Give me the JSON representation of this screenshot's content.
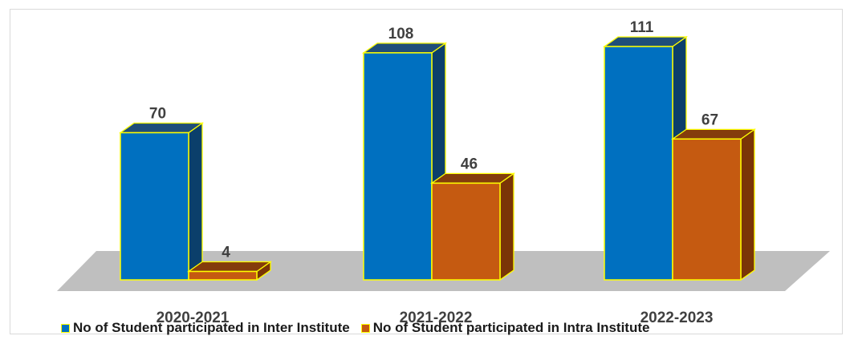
{
  "chart_data": {
    "type": "bar",
    "subtype": "3d-clustered-column",
    "title": "",
    "xlabel": "",
    "ylabel": "",
    "categories": [
      "2020-2021",
      "2021-2022",
      "2022-2023"
    ],
    "series": [
      {
        "name": "No of Student participated in Inter Institute",
        "values": [
          70,
          108,
          111
        ],
        "color": "#0070c0",
        "top_color": "#1f4e79",
        "side_color": "#0b3f6b"
      },
      {
        "name": "No of Student participated in Intra Institute",
        "values": [
          4,
          46,
          67
        ],
        "color": "#c55a11",
        "top_color": "#843c0c",
        "side_color": "#7a3507"
      }
    ],
    "ylim": [
      0,
      111
    ],
    "grid": false,
    "data_labels": true,
    "legend_position": "bottom",
    "bar_outline_color": "#ffff00",
    "floor_color": "#bfbfbf"
  }
}
